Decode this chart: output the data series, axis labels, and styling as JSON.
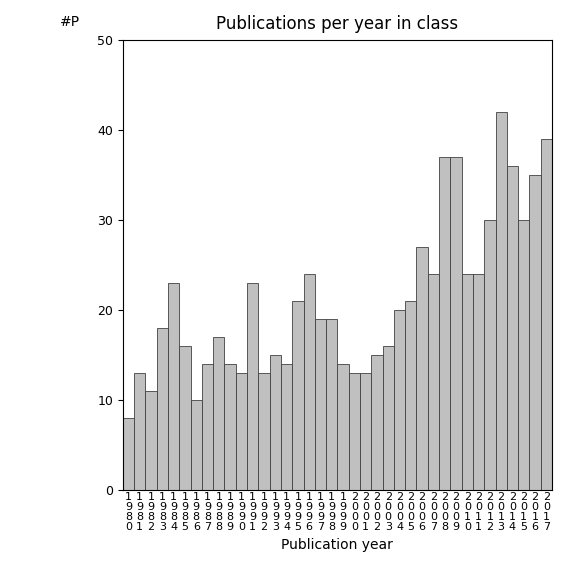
{
  "title": "Publications per year in class",
  "xlabel": "Publication year",
  "ylabel": "#P",
  "years": [
    1980,
    1981,
    1982,
    1983,
    1984,
    1985,
    1986,
    1987,
    1988,
    1989,
    1990,
    1991,
    1992,
    1993,
    1994,
    1995,
    1996,
    1997,
    1998,
    1999,
    2000,
    2001,
    2002,
    2003,
    2004,
    2005,
    2006,
    2007,
    2008,
    2009,
    2010,
    2011,
    2012,
    2013,
    2014,
    2015,
    2016,
    2017
  ],
  "values": [
    8,
    13,
    11,
    18,
    23,
    16,
    10,
    14,
    17,
    14,
    13,
    23,
    13,
    15,
    14,
    21,
    24,
    19,
    19,
    14,
    13,
    13,
    15,
    16,
    20,
    21,
    27,
    24,
    37,
    37,
    24,
    24,
    30,
    42,
    36,
    30,
    35,
    39
  ],
  "bar_color": "#c0c0c0",
  "bar_edgecolor": "#404040",
  "ylim": [
    0,
    50
  ],
  "yticks": [
    0,
    10,
    20,
    30,
    40,
    50
  ],
  "background_color": "#ffffff",
  "title_fontsize": 12,
  "axis_fontsize": 10,
  "tick_fontsize": 9
}
